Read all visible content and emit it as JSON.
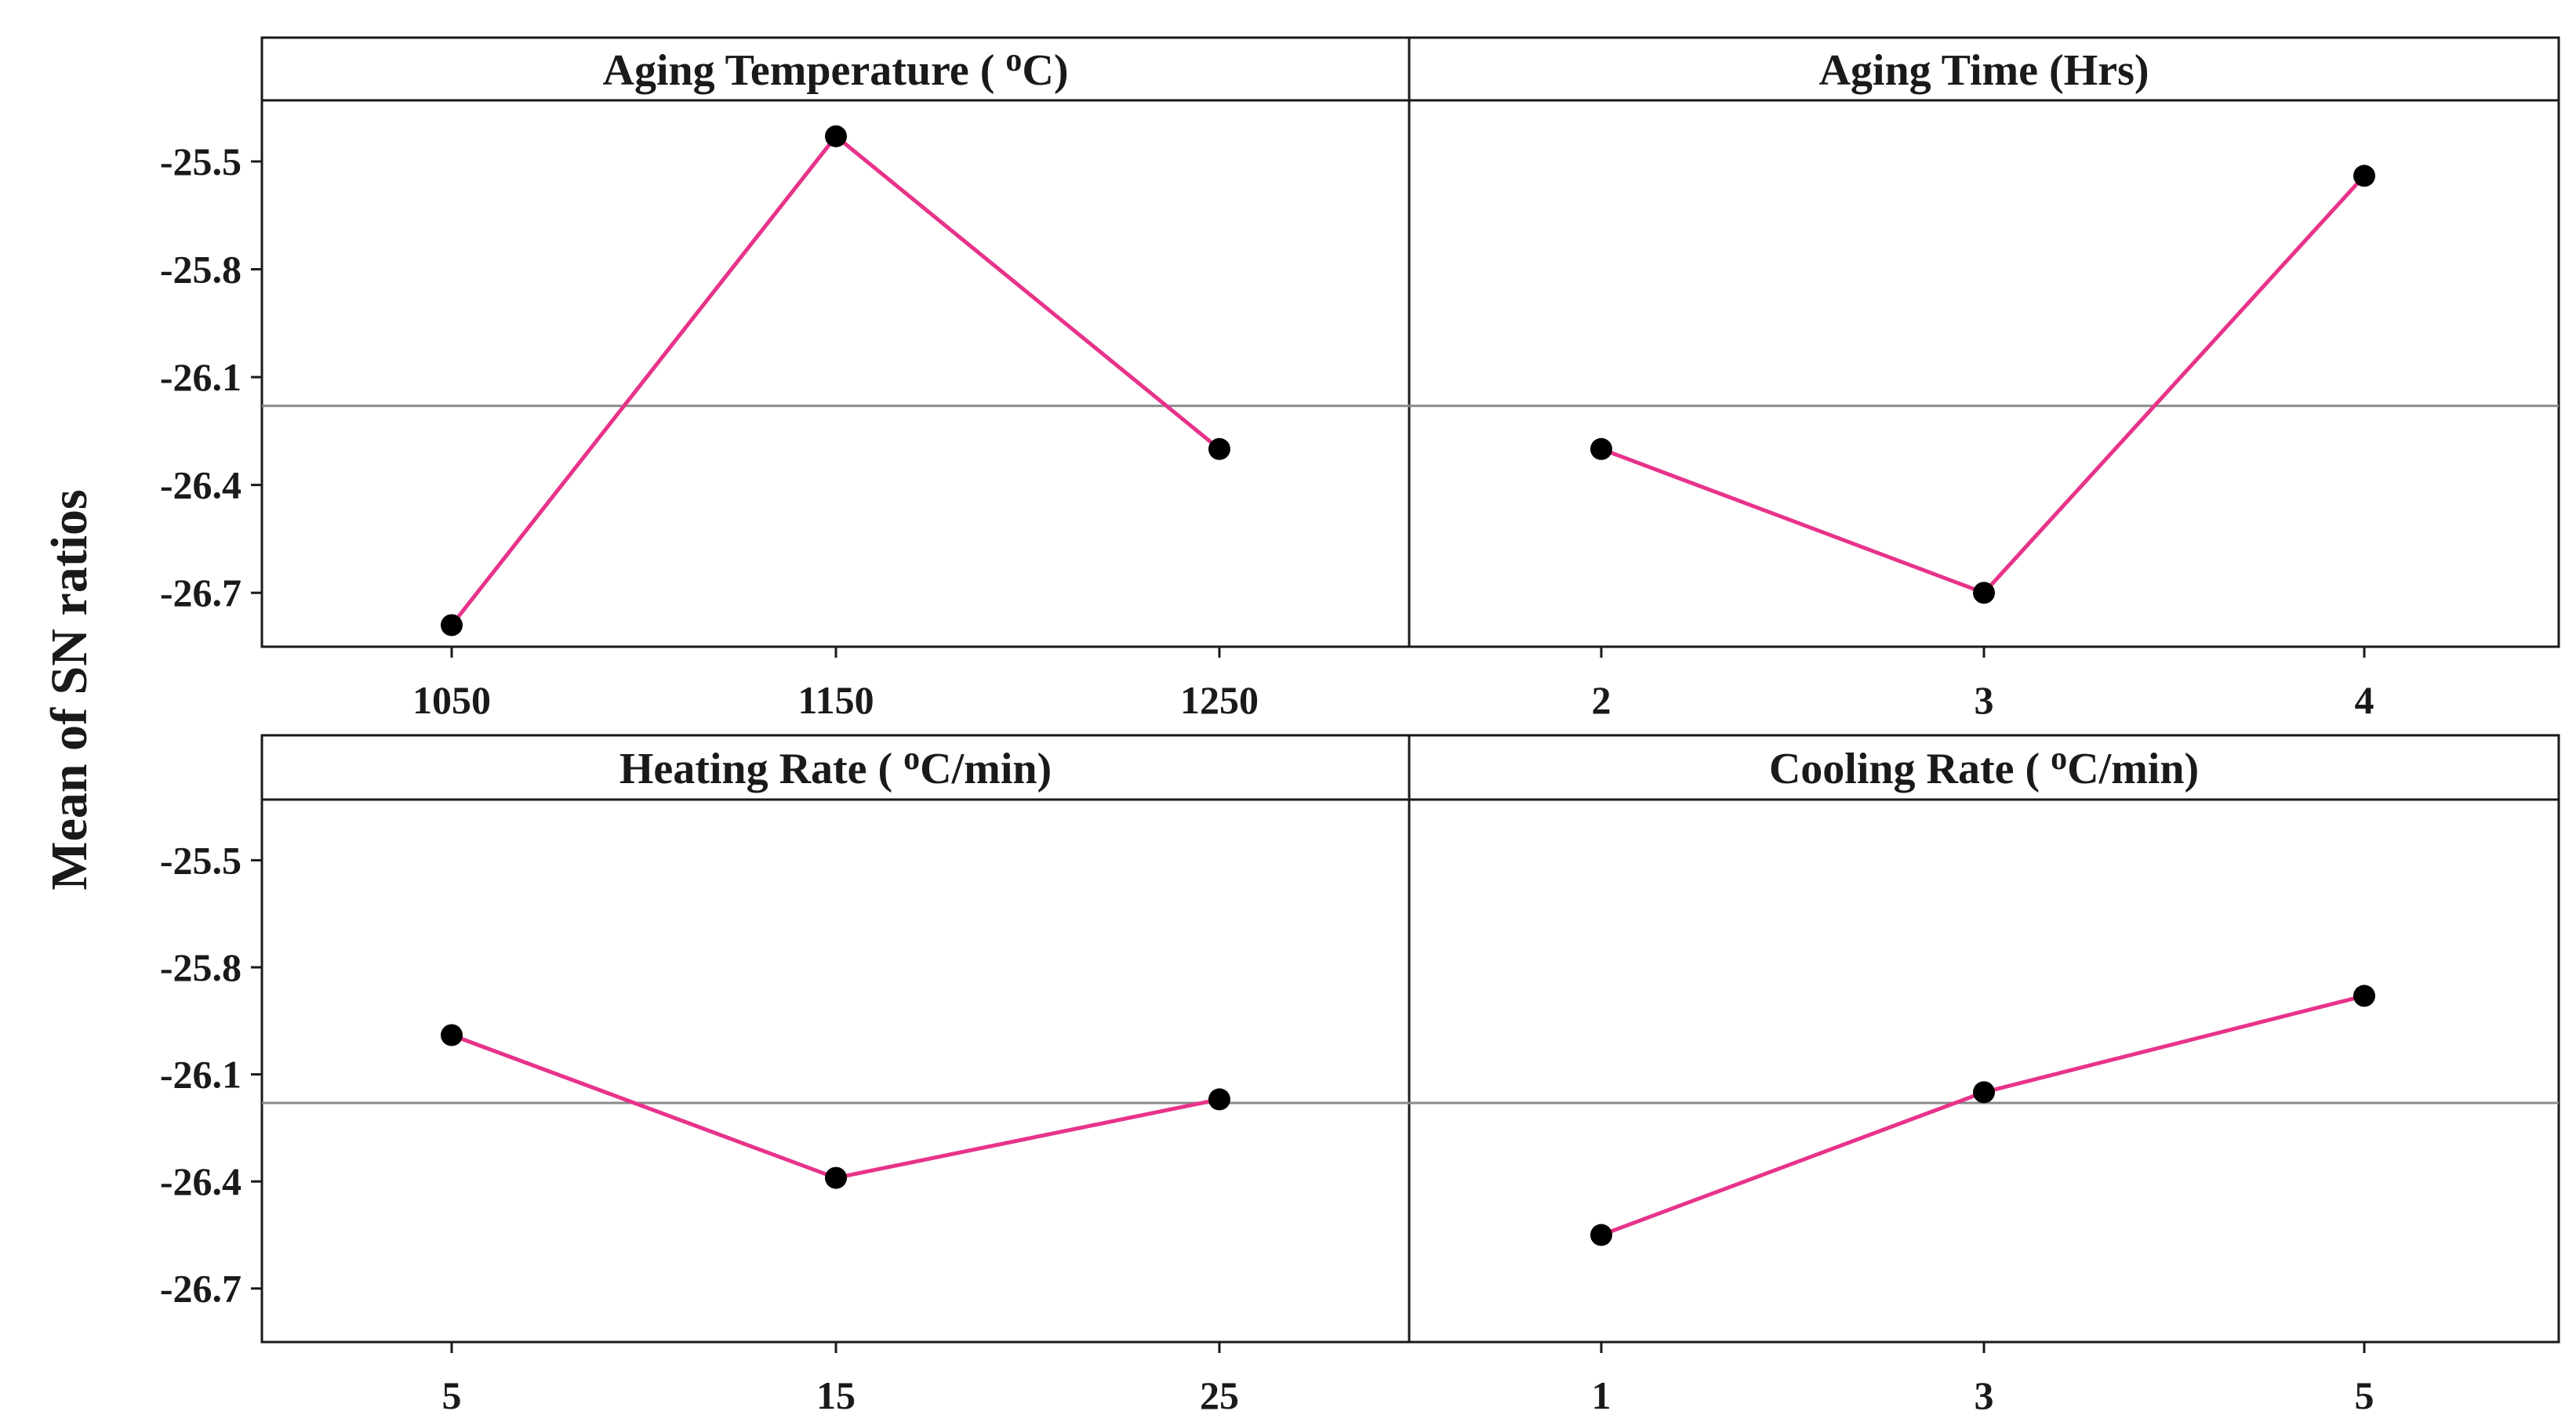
{
  "chart_data": {
    "type": "line",
    "ylabel": "Mean of SN ratios",
    "overall_mean": -26.18,
    "ylim": [
      -26.85,
      -25.33
    ],
    "yticks": [
      -25.5,
      -25.8,
      -26.1,
      -26.4,
      -26.7
    ],
    "ytick_labels": [
      "-25.5",
      "-25.8",
      "-26.1",
      "-26.4",
      "-26.7"
    ],
    "panels": [
      {
        "title_main": "Aging Temperature ( ",
        "title_sup": "o",
        "title_tail": "C)",
        "categories": [
          "1050",
          "1150",
          "1250"
        ],
        "values": [
          -26.79,
          -25.43,
          -26.3
        ]
      },
      {
        "title_main": "Aging Time (Hrs)",
        "title_sup": "",
        "title_tail": "",
        "categories": [
          "2",
          "3",
          "4"
        ],
        "values": [
          -26.3,
          -26.7,
          -25.54
        ]
      },
      {
        "title_main": "Heating Rate ( ",
        "title_sup": "o",
        "title_tail": "C/min)",
        "categories": [
          "5",
          "15",
          "25"
        ],
        "values": [
          -25.99,
          -26.39,
          -26.17
        ]
      },
      {
        "title_main": "Cooling Rate ( ",
        "title_sup": "o",
        "title_tail": "C/min)",
        "categories": [
          "1",
          "3",
          "5"
        ],
        "values": [
          -26.55,
          -26.15,
          -25.88
        ]
      }
    ]
  }
}
